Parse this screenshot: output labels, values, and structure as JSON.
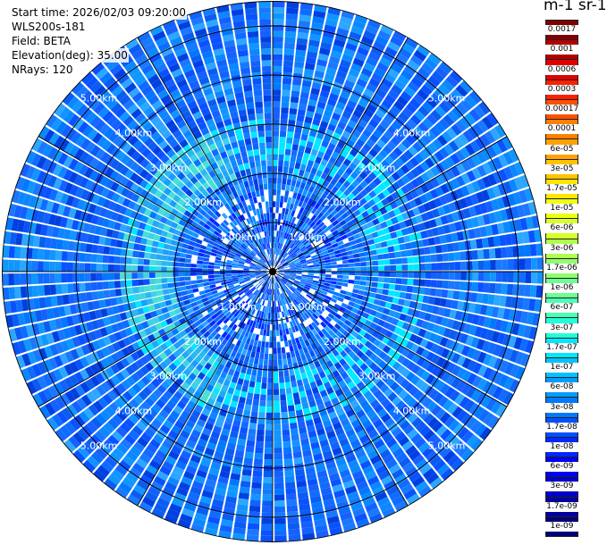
{
  "header": {
    "start_time": "Start time: 2026/02/03 09:20:00",
    "instrument": "WLS200s-181",
    "field": "Field: BETA",
    "elevation": "Elevation(deg): 35.00",
    "nrays": "NRays: 120"
  },
  "colorbar": {
    "title": "m-1 sr-1",
    "labels": [
      "0.0017",
      "0.001",
      "0.0006",
      "0.0003",
      "0.00017",
      "0.0001",
      "6e-05",
      "3e-05",
      "1.7e-05",
      "1e-05",
      "6e-06",
      "3e-06",
      "1.7e-06",
      "1e-06",
      "6e-07",
      "3e-07",
      "1.7e-07",
      "1e-07",
      "6e-08",
      "3e-08",
      "1.7e-08",
      "1e-08",
      "6e-09",
      "3e-09",
      "1.7e-09",
      "1e-09"
    ],
    "colors": [
      "#7f0000",
      "#b30000",
      "#e00000",
      "#ff2000",
      "#ff5000",
      "#ff7f00",
      "#ffa200",
      "#ffc400",
      "#ffe600",
      "#f0ff10",
      "#d8ff28",
      "#b0ff50",
      "#8fff70",
      "#6cff92",
      "#4affb4",
      "#20ffd8",
      "#00e8ff",
      "#00c2ff",
      "#009cff",
      "#0078ff",
      "#0050ff",
      "#0028ff",
      "#0000f2",
      "#0000c8",
      "#00009f",
      "#000078"
    ]
  },
  "chart_data": {
    "type": "heatmap",
    "projection": "polar (PPI)",
    "field": "BETA",
    "elevation_deg": 35.0,
    "nrays": 120,
    "ring_labels_km": [
      "1.00km",
      "2.00km",
      "3.00km",
      "4.00km",
      "5.00km"
    ],
    "max_range_km": 5.5,
    "background_level": "3e-08",
    "annulus_level": "1.7e-07",
    "annulus_radius_km": [
      2.0,
      3.1
    ],
    "annulus_sector_deg": [
      200,
      340
    ],
    "near_range_level": "1e-08"
  }
}
